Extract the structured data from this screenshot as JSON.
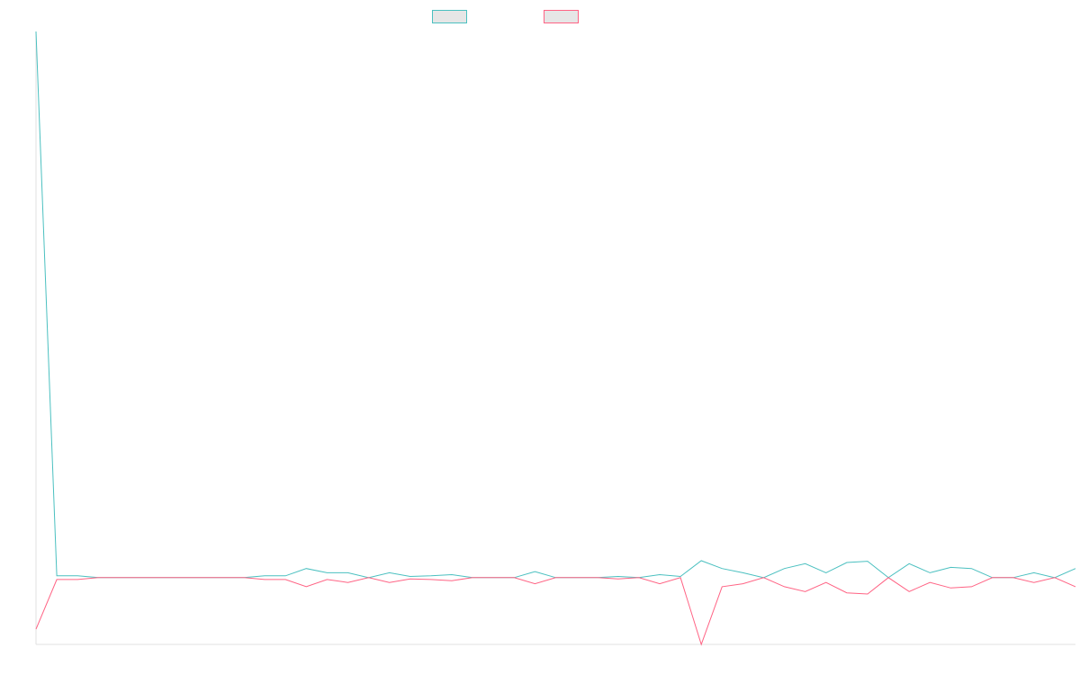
{
  "chart_data": {
    "type": "line",
    "title": "",
    "xlabel": "",
    "ylabel": "",
    "grid": false,
    "legend_position": "top-center",
    "x": [
      1,
      2,
      3,
      4,
      5,
      6,
      7,
      8,
      9,
      10,
      11,
      12,
      13,
      14,
      15,
      16,
      17,
      18,
      19,
      20,
      21,
      22,
      23,
      24,
      25,
      26,
      27,
      28,
      29,
      30,
      31,
      32,
      33,
      34,
      35,
      36,
      37,
      38,
      39,
      40,
      41,
      42,
      43,
      44,
      45,
      46,
      47,
      48,
      49,
      50,
      51
    ],
    "ylim": [
      -1.1,
      9.0
    ],
    "series": [
      {
        "name": "",
        "color": "#4bc0c0",
        "values": [
          9.0,
          0.03,
          0.03,
          0,
          0,
          0,
          0,
          0,
          0,
          0,
          0,
          0.03,
          0.03,
          0.15,
          0.08,
          0.08,
          0,
          0.08,
          0.02,
          0.03,
          0.05,
          0,
          0,
          0,
          0.1,
          0,
          0,
          0,
          0.02,
          0,
          0.05,
          0.02,
          0.28,
          0.15,
          0.08,
          0,
          0.15,
          0.23,
          0.08,
          0.25,
          0.27,
          0,
          0.23,
          0.08,
          0.17,
          0.15,
          0,
          0,
          0.08,
          0,
          0.15
        ]
      },
      {
        "name": "",
        "color": "#ff6384",
        "values": [
          -0.85,
          -0.03,
          -0.03,
          0,
          0,
          0,
          0,
          0,
          0,
          0,
          0,
          -0.03,
          -0.03,
          -0.15,
          -0.03,
          -0.08,
          0,
          -0.08,
          -0.02,
          -0.03,
          -0.05,
          0,
          0,
          0,
          -0.1,
          0,
          0,
          0,
          -0.02,
          0,
          -0.1,
          0,
          -1.1,
          -0.15,
          -0.1,
          0,
          -0.15,
          -0.23,
          -0.08,
          -0.25,
          -0.27,
          0,
          -0.23,
          -0.08,
          -0.17,
          -0.15,
          0,
          0,
          -0.08,
          0,
          -0.15
        ]
      }
    ]
  }
}
